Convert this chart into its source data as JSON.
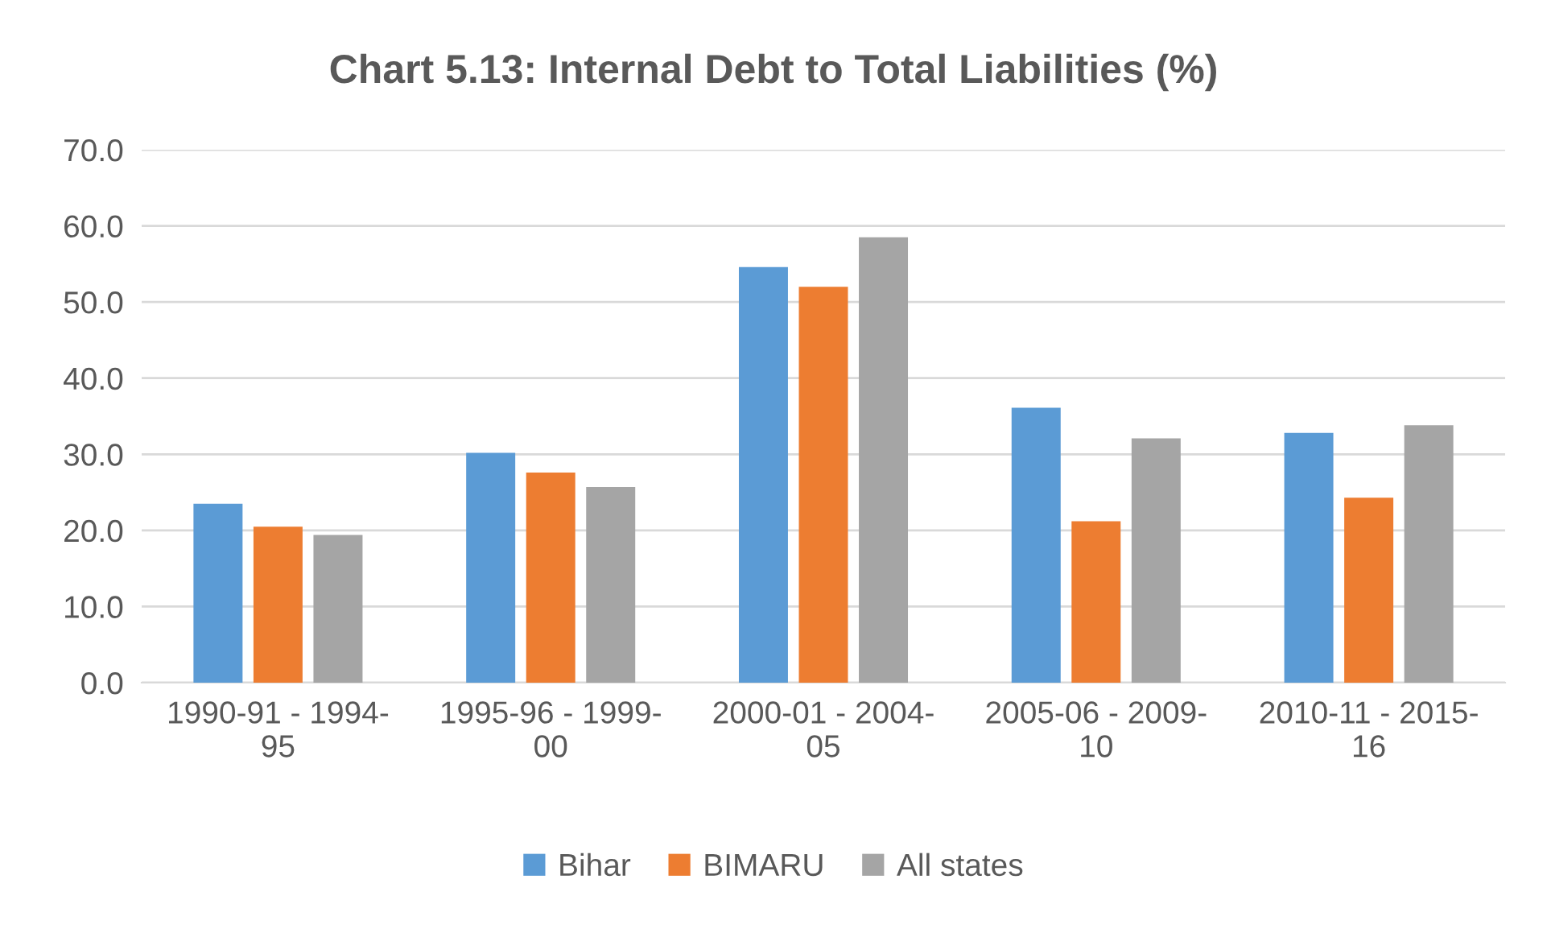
{
  "chart_data": {
    "type": "bar",
    "title": "Chart 5.13: Internal Debt to Total Liabilities (%)",
    "categories": [
      "1990-91 - 1994-\n95",
      "1995-96 - 1999-\n00",
      "2000-01 - 2004-\n05",
      "2005-06 - 2009-\n10",
      "2010-11 - 2015-\n16"
    ],
    "series": [
      {
        "name": "Bihar",
        "color": "#5b9bd5",
        "values": [
          23.5,
          30.2,
          54.6,
          36.1,
          32.8
        ]
      },
      {
        "name": "BIMARU",
        "color": "#ed7d31",
        "values": [
          20.5,
          27.6,
          52.0,
          21.2,
          24.3
        ]
      },
      {
        "name": "All states",
        "color": "#a5a5a5",
        "values": [
          19.4,
          25.7,
          58.5,
          32.1,
          33.8
        ]
      }
    ],
    "ylim": [
      0,
      70
    ],
    "yticks": [
      {
        "value": 0,
        "label": "0.0"
      },
      {
        "value": 10,
        "label": "10.0"
      },
      {
        "value": 20,
        "label": "20.0"
      },
      {
        "value": 30,
        "label": "30.0"
      },
      {
        "value": 40,
        "label": "40.0"
      },
      {
        "value": 50,
        "label": "50.0"
      },
      {
        "value": 60,
        "label": "60.0"
      },
      {
        "value": 70,
        "label": "70.0"
      }
    ],
    "grid": "y",
    "legend": "bottom"
  }
}
